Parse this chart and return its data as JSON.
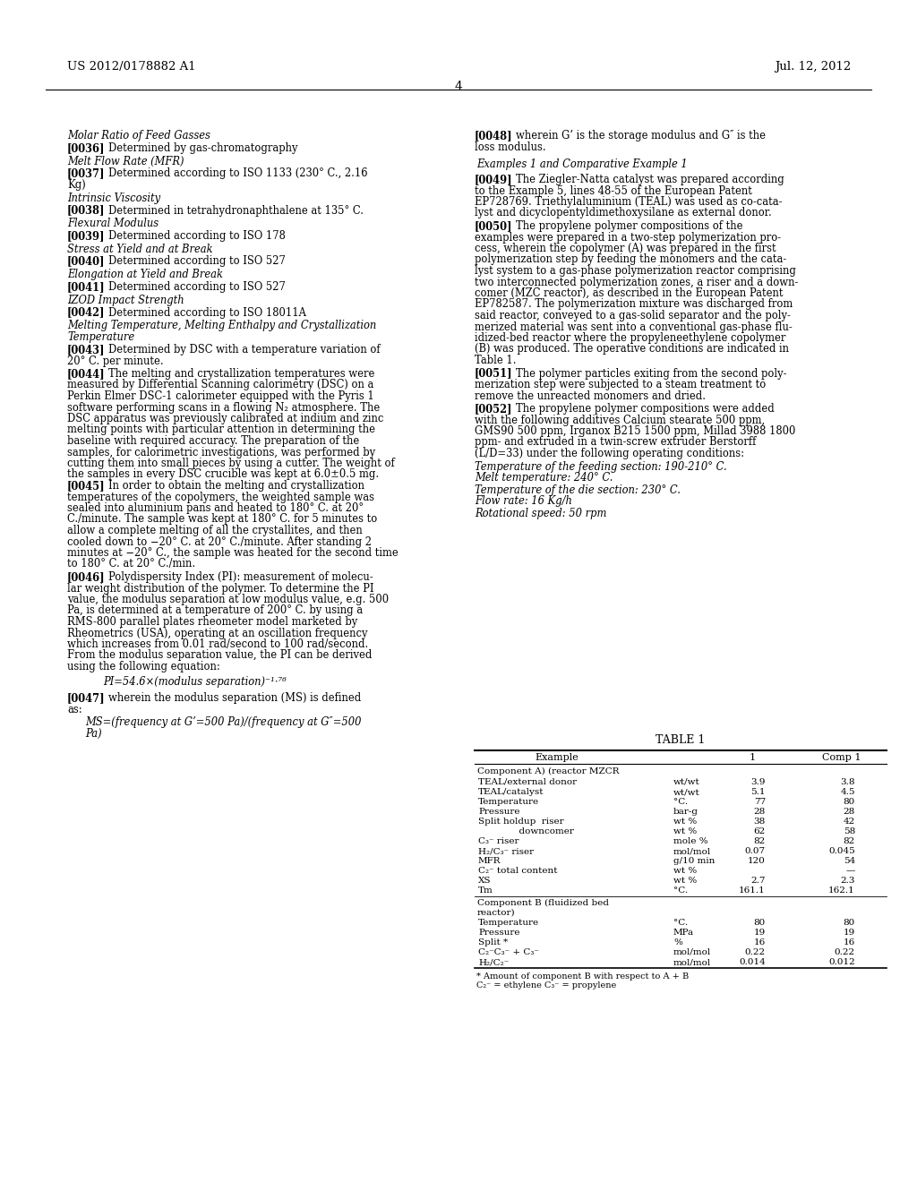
{
  "header_left": "US 2012/0178882 A1",
  "header_right": "Jul. 12, 2012",
  "page_number": "4",
  "bg_color": "#ffffff",
  "text_color": "#000000",
  "left_column": [
    {
      "type": "heading",
      "text": "Molar Ratio of Feed Gasses"
    },
    {
      "type": "para",
      "tag": "[0036]",
      "text": "Determined by gas-chromatography"
    },
    {
      "type": "heading",
      "text": "Melt Flow Rate (MFR)"
    },
    {
      "type": "para",
      "tag": "[0037]",
      "text": "Determined according to ISO 1133 (230° C., 2.16\nKg)"
    },
    {
      "type": "heading",
      "text": "Intrinsic Viscosity"
    },
    {
      "type": "para",
      "tag": "[0038]",
      "text": "Determined in tetrahydronaphthalene at 135° C."
    },
    {
      "type": "heading",
      "text": "Flexural Modulus"
    },
    {
      "type": "para",
      "tag": "[0039]",
      "text": "Determined according to ISO 178"
    },
    {
      "type": "heading",
      "text": "Stress at Yield and at Break"
    },
    {
      "type": "para",
      "tag": "[0040]",
      "text": "Determined according to ISO 527"
    },
    {
      "type": "heading",
      "text": "Elongation at Yield and Break"
    },
    {
      "type": "para",
      "tag": "[0041]",
      "text": "Determined according to ISO 527"
    },
    {
      "type": "heading",
      "text": "IZOD Impact Strength"
    },
    {
      "type": "para",
      "tag": "[0042]",
      "text": "Determined according to ISO 18011A"
    },
    {
      "type": "heading",
      "text": "Melting Temperature, Melting Enthalpy and Crystallization\nTemperature"
    },
    {
      "type": "para",
      "tag": "[0043]",
      "text": "Determined by DSC with a temperature variation of\n20° C. per minute."
    },
    {
      "type": "para_nospace",
      "tag": "[0044]",
      "text": "The melting and crystallization temperatures were\nmeasured by Differential Scanning calorimetry (DSC) on a\nPerkin Elmer DSC-1 calorimeter equipped with the Pyris 1\nsoftware performing scans in a flowing N₂ atmosphere. The\nDSC apparatus was previously calibrated at indium and zinc\nmelting points with particular attention in determining the\nbaseline with required accuracy. The preparation of the\nsamples, for calorimetric investigations, was performed by\ncutting them into small pieces by using a cutter. The weight of\nthe samples in every DSC crucible was kept at 6.0±0.5 mg."
    },
    {
      "type": "para",
      "tag": "[0045]",
      "text": "In order to obtain the melting and crystallization\ntemperatures of the copolymers, the weighted sample was\nsealed into aluminium pans and heated to 180° C. at 20°\nC./minute. The sample was kept at 180° C. for 5 minutes to\nallow a complete melting of all the crystallites, and then\ncooled down to −20° C. at 20° C./minute. After standing 2\nminutes at −20° C., the sample was heated for the second time\nto 180° C. at 20° C./min."
    },
    {
      "type": "para",
      "tag": "[0046]",
      "text": "Polydispersity Index (PI): measurement of molecu-\nlar weight distribution of the polymer. To determine the PI\nvalue, the modulus separation at low modulus value, e.g. 500\nPa, is determined at a temperature of 200° C. by using a\nRMS-800 parallel plates rheometer model marketed by\nRheometrics (USA), operating at an oscillation frequency\nwhich increases from 0.01 rad/second to 100 rad/second.\nFrom the modulus separation value, the PI can be derived\nusing the following equation:"
    },
    {
      "type": "equation",
      "text": "PI=54.6×(modulus separation)⁻¹⋅⁷⁶"
    },
    {
      "type": "para",
      "tag": "[0047]",
      "text": "wherein the modulus separation (MS) is defined\nas:"
    },
    {
      "type": "equation2",
      "text": "MS=(frequency at G’=500 Pa)/(frequency at G″=500\nPa)"
    }
  ],
  "right_column": [
    {
      "type": "para_cont",
      "tag": "[0048]",
      "text": "wherein G’ is the storage modulus and G″ is the\nloss modulus."
    },
    {
      "type": "section_title",
      "text": "Examples 1 and Comparative Example 1"
    },
    {
      "type": "para",
      "tag": "[0049]",
      "text": "The Ziegler-Natta catalyst was prepared according\nto the Example 5, lines 48-55 of the European Patent\nEP728769. Triethylaluminium (TEAL) was used as co-cata-\nlyst and dicyclopentyldimethoxysilane as external donor."
    },
    {
      "type": "para",
      "tag": "[0050]",
      "text": "The propylene polymer compositions of the\nexamples were prepared in a two-step polymerization pro-\ncess, wherein the copolymer (A) was prepared in the first\npolymerization step by feeding the monomers and the cata-\nlyst system to a gas-phase polymerization reactor comprising\ntwo interconnected polymerization zones, a riser and a down-\ncomer (MZC reactor), as described in the European Patent\nEP782587. The polymerization mixture was discharged from\nsaid reactor, conveyed to a gas-solid separator and the poly-\nmerized material was sent into a conventional gas-phase flu-\nidized-bed reactor where the propyleneethylene copolymer\n(B) was produced. The operative conditions are indicated in\nTable 1."
    },
    {
      "type": "para",
      "tag": "[0051]",
      "text": "The polymer particles exiting from the second poly-\nmerization step were subjected to a steam treatment to\nremove the unreacted monomers and dried."
    },
    {
      "type": "para",
      "tag": "[0052]",
      "text": "The propylene polymer compositions were added\nwith the following additives Calcium stearate 500 ppm,\nGMS90 500 ppm, Irganox B215 1500 ppm, Millad 3988 1800\nppm- and extruded in a twin-screw extruder Berstorff\n(L/D=33) under the following operating conditions:"
    },
    {
      "type": "opercond",
      "text": "Temperature of the feeding section: 190-210° C."
    },
    {
      "type": "opercond",
      "text": "Melt temperature: 240° C."
    },
    {
      "type": "opercond",
      "text": "Temperature of the die section: 230° C."
    },
    {
      "type": "opercond",
      "text": "Flow rate: 16 Kg/h"
    },
    {
      "type": "opercond",
      "text": "Rotational speed: 50 rpm"
    }
  ],
  "table": {
    "title": "TABLE 1",
    "col_headers": [
      "Example",
      "",
      "1",
      "Comp 1"
    ],
    "sections": [
      {
        "section_header": "Component A) (reactor MZCR",
        "rows": [
          [
            "TEAL/external donor",
            "wt/wt",
            "3.9",
            "3.8"
          ],
          [
            "TEAL/catalyst",
            "wt/wt",
            "5.1",
            "4.5"
          ],
          [
            "Temperature",
            "°C.",
            "77",
            "80"
          ],
          [
            "Pressure",
            "bar-g",
            "28",
            "28"
          ],
          [
            "Split holdup  riser",
            "wt %",
            "38",
            "42"
          ],
          [
            "              downcomer",
            "wt %",
            "62",
            "58"
          ],
          [
            "C₃⁻ riser",
            "mole %",
            "82",
            "82"
          ],
          [
            "H₂/C₃⁻ riser",
            "mol/mol",
            "0.07",
            "0.045"
          ],
          [
            "MFR",
            "g/10 min",
            "120",
            "54"
          ],
          [
            "C₂⁻ total content",
            "wt %",
            "",
            "—"
          ],
          [
            "XS",
            "wt %",
            "2.7",
            "2.3"
          ],
          [
            "Tm",
            "°C.",
            "161.1",
            "162.1"
          ]
        ]
      },
      {
        "section_header": "Component B (fluidized bed\nreactor)",
        "rows": [
          [
            "Temperature",
            "°C.",
            "80",
            "80"
          ],
          [
            "Pressure",
            "MPa",
            "19",
            "19"
          ],
          [
            "Split *",
            "%",
            "16",
            "16"
          ],
          [
            "C₂⁻C₃⁻ + C₃⁻",
            "mol/mol",
            "0.22",
            "0.22"
          ],
          [
            "H₂/C₂⁻",
            "mol/mol",
            "0.014",
            "0.012"
          ]
        ]
      }
    ],
    "footnotes": [
      "* Amount of component B with respect to A + B",
      "C₂⁻ = ethylene C₃⁻ = propylene"
    ]
  }
}
